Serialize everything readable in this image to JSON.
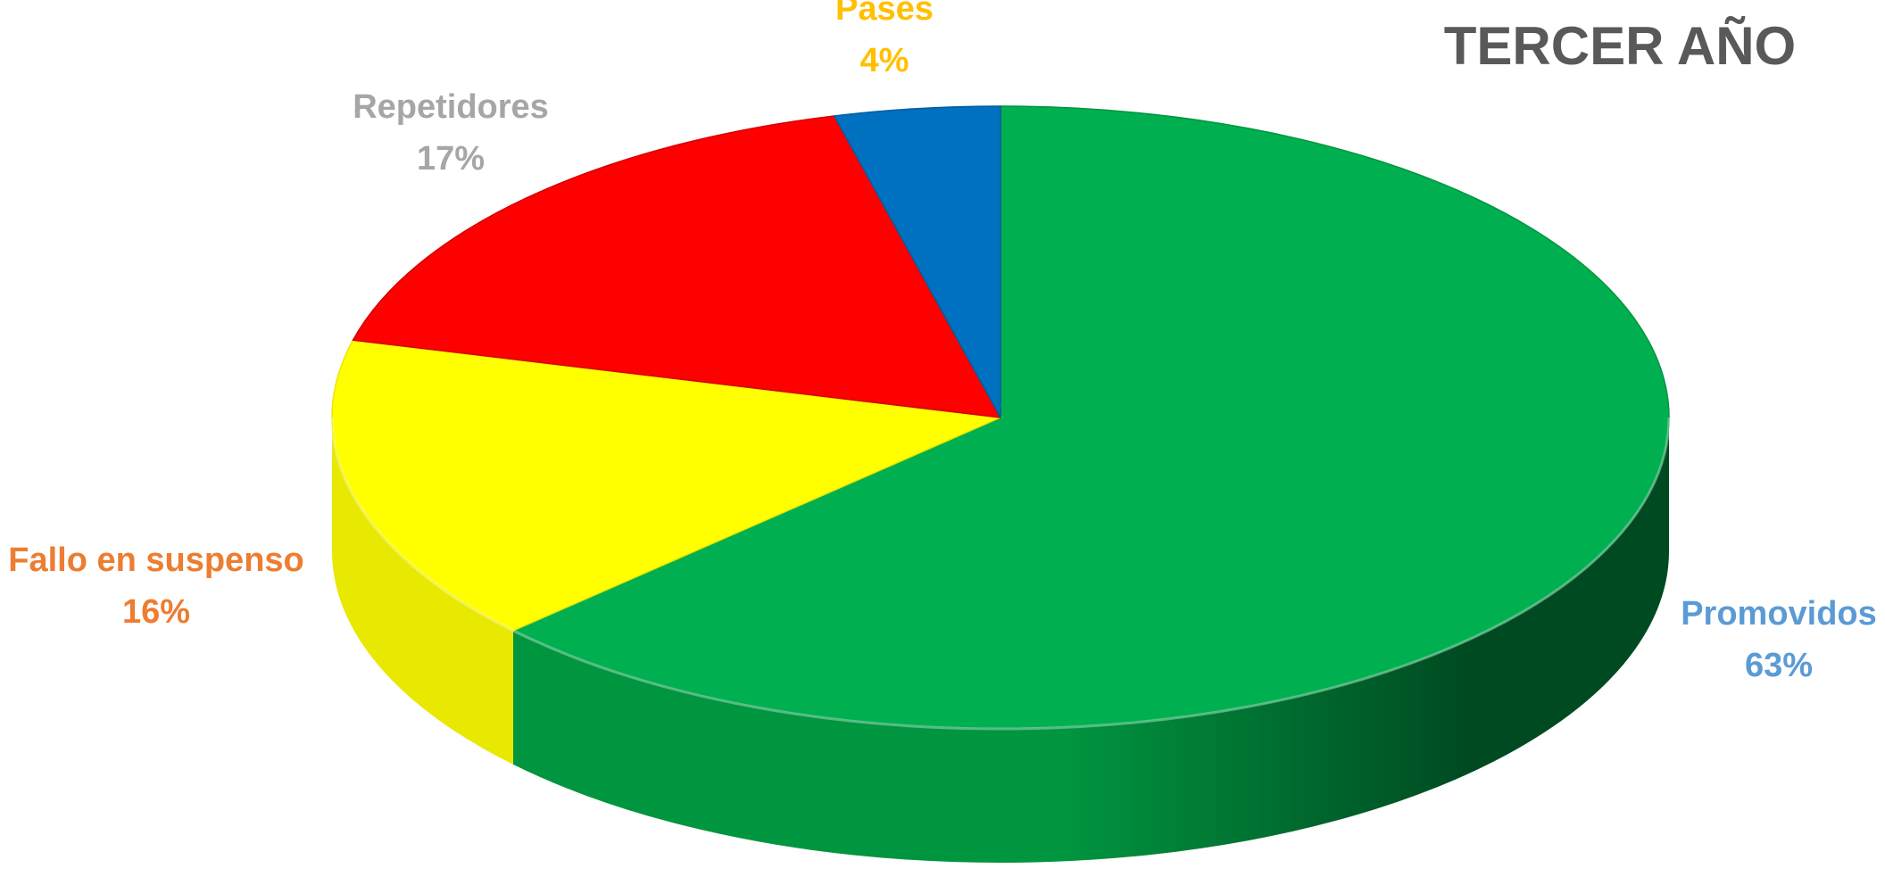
{
  "chart_data": {
    "type": "pie",
    "title": "TERCER AÑO",
    "slices": [
      {
        "label": "Promovidos",
        "value": 63,
        "display": "63%",
        "color": "#00B050",
        "label_color": "#5B9BD5",
        "side_dark": "#004A22",
        "side_light": "#00953F"
      },
      {
        "label": "Fallo en suspenso",
        "value": 16,
        "display": "16%",
        "color": "#FFFF00",
        "label_color": "#ED7D31",
        "side_dark": "#BDBD00",
        "side_light": "#E8E800"
      },
      {
        "label": "Repetidores",
        "value": 17,
        "display": "17%",
        "color": "#FF0000",
        "label_color": "#A6A6A6",
        "side_dark": "#A00000",
        "side_light": "#D40000"
      },
      {
        "label": "Pases",
        "value": 4,
        "display": "4%",
        "color": "#0070C0",
        "label_color": "#FFC000",
        "side_dark": "#004C82",
        "side_light": "#005EA0"
      }
    ]
  }
}
